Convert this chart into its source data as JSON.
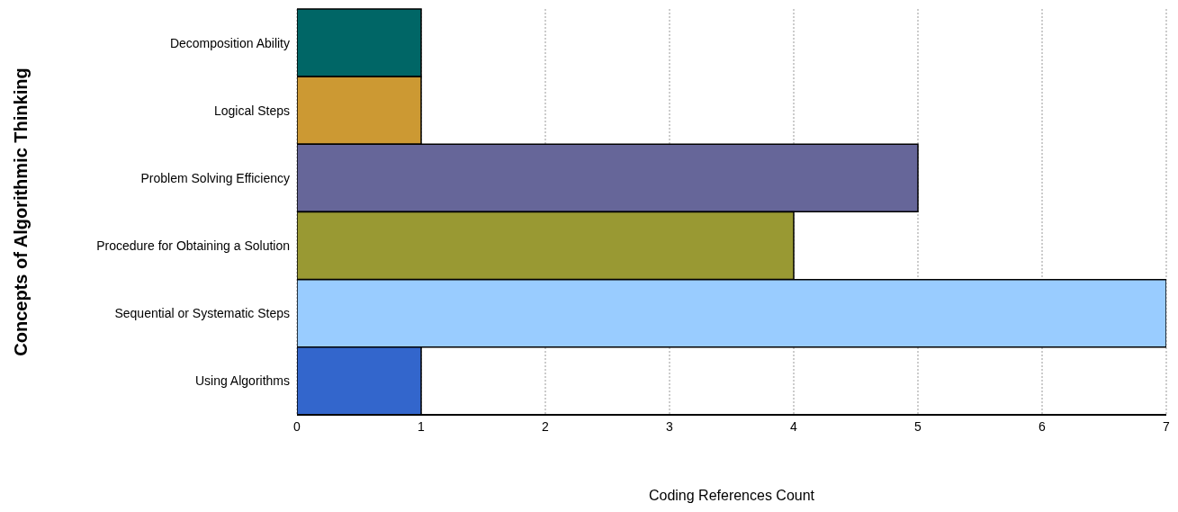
{
  "chart_data": {
    "type": "bar",
    "orientation": "horizontal",
    "xlabel": "Coding References Count",
    "ylabel": "Concepts of Algorithmic Thinking",
    "categories": [
      "Decomposition Ability",
      "Logical Steps",
      "Problem Solving Efficiency",
      "Procedure for Obtaining a Solution",
      "Sequential or Systematic Steps",
      "Using Algorithms"
    ],
    "values": [
      1,
      1,
      5,
      4,
      7,
      1
    ],
    "colors": [
      "#006666",
      "#cc9933",
      "#666699",
      "#999933",
      "#99ccff",
      "#3366cc"
    ],
    "xlim": [
      0,
      7
    ],
    "xticks": [
      0,
      1,
      2,
      3,
      4,
      5,
      6,
      7
    ],
    "grid": "x"
  }
}
